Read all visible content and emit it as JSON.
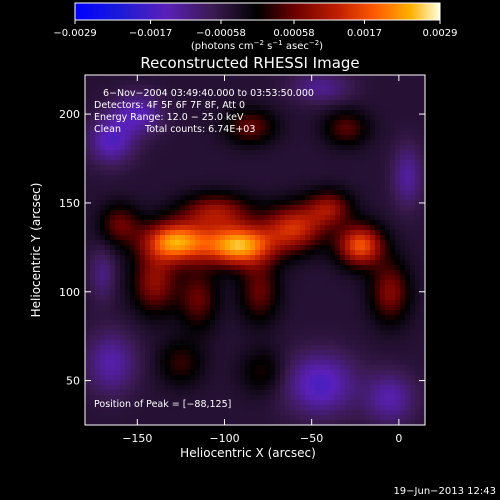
{
  "chart_data": {
    "type": "heatmap",
    "title": "Reconstructed RHESSI Image",
    "xlabel": "Heliocentric X (arcsec)",
    "ylabel": "Heliocentric Y (arcsec)",
    "xlim": [
      -180,
      15
    ],
    "ylim": [
      25,
      222
    ],
    "x_ticks": [
      -150,
      -100,
      -50,
      0
    ],
    "y_ticks": [
      50,
      100,
      150,
      200
    ],
    "x_tick_labels": [
      "−150",
      "−100",
      "−50",
      "0"
    ],
    "y_tick_labels": [
      "50",
      "100",
      "150",
      "200"
    ],
    "colorbar": {
      "range": [
        -0.0029,
        0.0029
      ],
      "ticks": [
        -0.0029,
        -0.0017,
        -0.00058,
        0.00058,
        0.0017,
        0.0029
      ],
      "tick_labels": [
        "−0.0029",
        "−0.0017",
        "−0.00058",
        "0.00058",
        "0.0017",
        "0.0029"
      ],
      "unit_prefix": "(photons cm",
      "unit_exp1": "−2",
      "unit_mid": " s",
      "unit_exp2": "−1",
      "unit_mid2": " asec",
      "unit_exp3": "−2",
      "unit_suffix": ")"
    },
    "annotations": {
      "time_range": "6−Nov−2004 03:49:40.000 to 03:53:50.000",
      "detectors": "Detectors: 4F 5F 6F 7F 8F, Att 0",
      "energy": "Energy Range: 12.0 − 25.0 keV",
      "method": "Clean",
      "counts": "Total counts: 6.74E+03",
      "peak": "Position of Peak = [−88,125]"
    },
    "peak": {
      "x": -88,
      "y": 125
    },
    "sources": [
      {
        "x": -92,
        "y": 126,
        "sx": 14,
        "sy": 8,
        "amp": 0.0029
      },
      {
        "x": -128,
        "y": 128,
        "sx": 13,
        "sy": 8,
        "amp": 0.0027
      },
      {
        "x": -22,
        "y": 126,
        "sx": 9,
        "sy": 8,
        "amp": 0.0022
      },
      {
        "x": -60,
        "y": 136,
        "sx": 12,
        "sy": 9,
        "amp": 0.0018
      },
      {
        "x": -105,
        "y": 145,
        "sx": 14,
        "sy": 7,
        "amp": 0.0014
      },
      {
        "x": -40,
        "y": 147,
        "sx": 9,
        "sy": 7,
        "amp": 0.0013
      },
      {
        "x": -140,
        "y": 105,
        "sx": 9,
        "sy": 12,
        "amp": 0.0013
      },
      {
        "x": -115,
        "y": 96,
        "sx": 8,
        "sy": 12,
        "amp": 0.001
      },
      {
        "x": -80,
        "y": 100,
        "sx": 8,
        "sy": 12,
        "amp": 0.001
      },
      {
        "x": -5,
        "y": 100,
        "sx": 8,
        "sy": 12,
        "amp": 0.0012
      },
      {
        "x": -160,
        "y": 138,
        "sx": 8,
        "sy": 8,
        "amp": 0.001
      },
      {
        "x": -85,
        "y": 193,
        "sx": 10,
        "sy": 7,
        "amp": 0.001
      },
      {
        "x": -30,
        "y": 192,
        "sx": 9,
        "sy": 7,
        "amp": 0.0009
      },
      {
        "x": -125,
        "y": 60,
        "sx": 9,
        "sy": 9,
        "amp": 0.0007
      },
      {
        "x": -78,
        "y": 55,
        "sx": 9,
        "sy": 9,
        "amp": 0.0006
      },
      {
        "x": -165,
        "y": 185,
        "sx": 9,
        "sy": 9,
        "amp": -0.0011
      },
      {
        "x": -150,
        "y": 200,
        "sx": 10,
        "sy": 8,
        "amp": -0.001
      },
      {
        "x": -45,
        "y": 215,
        "sx": 12,
        "sy": 6,
        "amp": -0.0007
      },
      {
        "x": -165,
        "y": 60,
        "sx": 10,
        "sy": 12,
        "amp": -0.0009
      },
      {
        "x": -45,
        "y": 48,
        "sx": 14,
        "sy": 12,
        "amp": -0.0012
      },
      {
        "x": -5,
        "y": 40,
        "sx": 10,
        "sy": 10,
        "amp": -0.0009
      },
      {
        "x": 5,
        "y": 165,
        "sx": 6,
        "sy": 12,
        "amp": -0.0008
      },
      {
        "x": -170,
        "y": 110,
        "sx": 5,
        "sy": 10,
        "amp": -0.0006
      }
    ]
  },
  "footer": {
    "date": "19−Jun−2013 12:43"
  }
}
